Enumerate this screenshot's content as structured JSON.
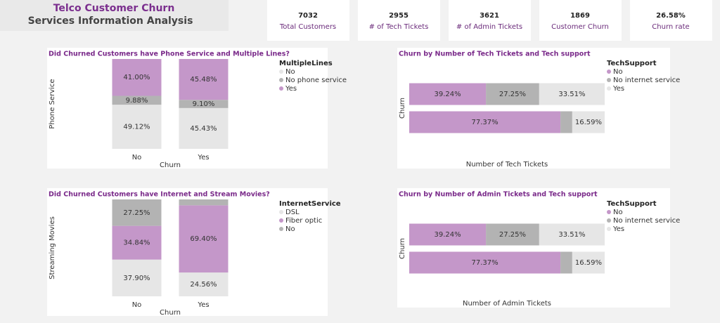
{
  "header": {
    "title": "Telco Customer Churn",
    "subtitle": "Services Information Analysis"
  },
  "kpis": [
    {
      "value": "7032",
      "label": "Total Customers"
    },
    {
      "value": "2955",
      "label": "# of Tech Tickets"
    },
    {
      "value": "3621",
      "label": "# of Admin Tickets"
    },
    {
      "value": "1869",
      "label": "Customer Churn"
    },
    {
      "value": "26.58%",
      "label": "Churn rate"
    }
  ],
  "chart_data": [
    {
      "type": "bar",
      "orientation": "vertical",
      "stacked": true,
      "title": "Did Churned Customers have Phone Service and Multiple Lines?",
      "x_label": "Churn",
      "y_label": "Phone Service",
      "legend_title": "MultipleLines",
      "categories": [
        "No",
        "Yes"
      ],
      "ylim": [
        0,
        100
      ],
      "series": [
        {
          "name": "No",
          "color": "#e6e6e6",
          "values": [
            49.12,
            45.43
          ],
          "value_labels": [
            "49.12%",
            "45.43%"
          ]
        },
        {
          "name": "No phone service",
          "color": "#b3b3b3",
          "values": [
            9.88,
            9.1
          ],
          "value_labels": [
            "9.88%",
            "9.10%"
          ]
        },
        {
          "name": "Yes",
          "color": "#c497c9",
          "values": [
            41.0,
            45.48
          ],
          "value_labels": [
            "41.00%",
            "45.48%"
          ]
        }
      ]
    },
    {
      "type": "bar",
      "orientation": "horizontal",
      "stacked": true,
      "title": "Churn by Number of Tech Tickets and Tech support",
      "x_label": "Number of Tech Tickets",
      "y_label": "Churn",
      "legend_title": "TechSupport",
      "categories": [
        null,
        null
      ],
      "xlim": [
        0,
        100
      ],
      "series": [
        {
          "name": "No",
          "color": "#c497c9",
          "values": [
            39.24,
            77.37
          ],
          "value_labels": [
            "39.24%",
            "77.37%"
          ]
        },
        {
          "name": "No internet service",
          "color": "#b3b3b3",
          "values": [
            27.25,
            6.04
          ],
          "value_labels": [
            "27.25%",
            null
          ]
        },
        {
          "name": "Yes",
          "color": "#e6e6e6",
          "values": [
            33.51,
            16.59
          ],
          "value_labels": [
            "33.51%",
            "16.59%"
          ]
        }
      ]
    },
    {
      "type": "bar",
      "orientation": "vertical",
      "stacked": true,
      "title": "Did Churned Customers have Internet and Stream Movies?",
      "x_label": "Churn",
      "y_label": "Streaming Movies",
      "legend_title": "InternetService",
      "categories": [
        "No",
        "Yes"
      ],
      "ylim": [
        0,
        100
      ],
      "series": [
        {
          "name": "DSL",
          "color": "#e6e6e6",
          "values": [
            37.9,
            24.56
          ],
          "value_labels": [
            "37.90%",
            "24.56%"
          ]
        },
        {
          "name": "Fiber optic",
          "color": "#c497c9",
          "values": [
            34.84,
            69.4
          ],
          "value_labels": [
            "34.84%",
            "69.40%"
          ]
        },
        {
          "name": "No",
          "color": "#b3b3b3",
          "values": [
            27.25,
            6.04
          ],
          "value_labels": [
            "27.25%",
            null
          ]
        }
      ]
    },
    {
      "type": "bar",
      "orientation": "horizontal",
      "stacked": true,
      "title": "Churn by Number of Admin Tickets and Tech support",
      "x_label": "Number of Admin Tickets",
      "y_label": "Churn",
      "legend_title": "TechSupport",
      "categories": [
        null,
        null
      ],
      "xlim": [
        0,
        100
      ],
      "series": [
        {
          "name": "No",
          "color": "#c497c9",
          "values": [
            39.24,
            77.37
          ],
          "value_labels": [
            "39.24%",
            "77.37%"
          ]
        },
        {
          "name": "No internet service",
          "color": "#b3b3b3",
          "values": [
            27.25,
            6.04
          ],
          "value_labels": [
            "27.25%",
            null
          ]
        },
        {
          "name": "Yes",
          "color": "#e6e6e6",
          "values": [
            33.51,
            16.59
          ],
          "value_labels": [
            "33.51%",
            "16.59%"
          ]
        }
      ]
    }
  ]
}
